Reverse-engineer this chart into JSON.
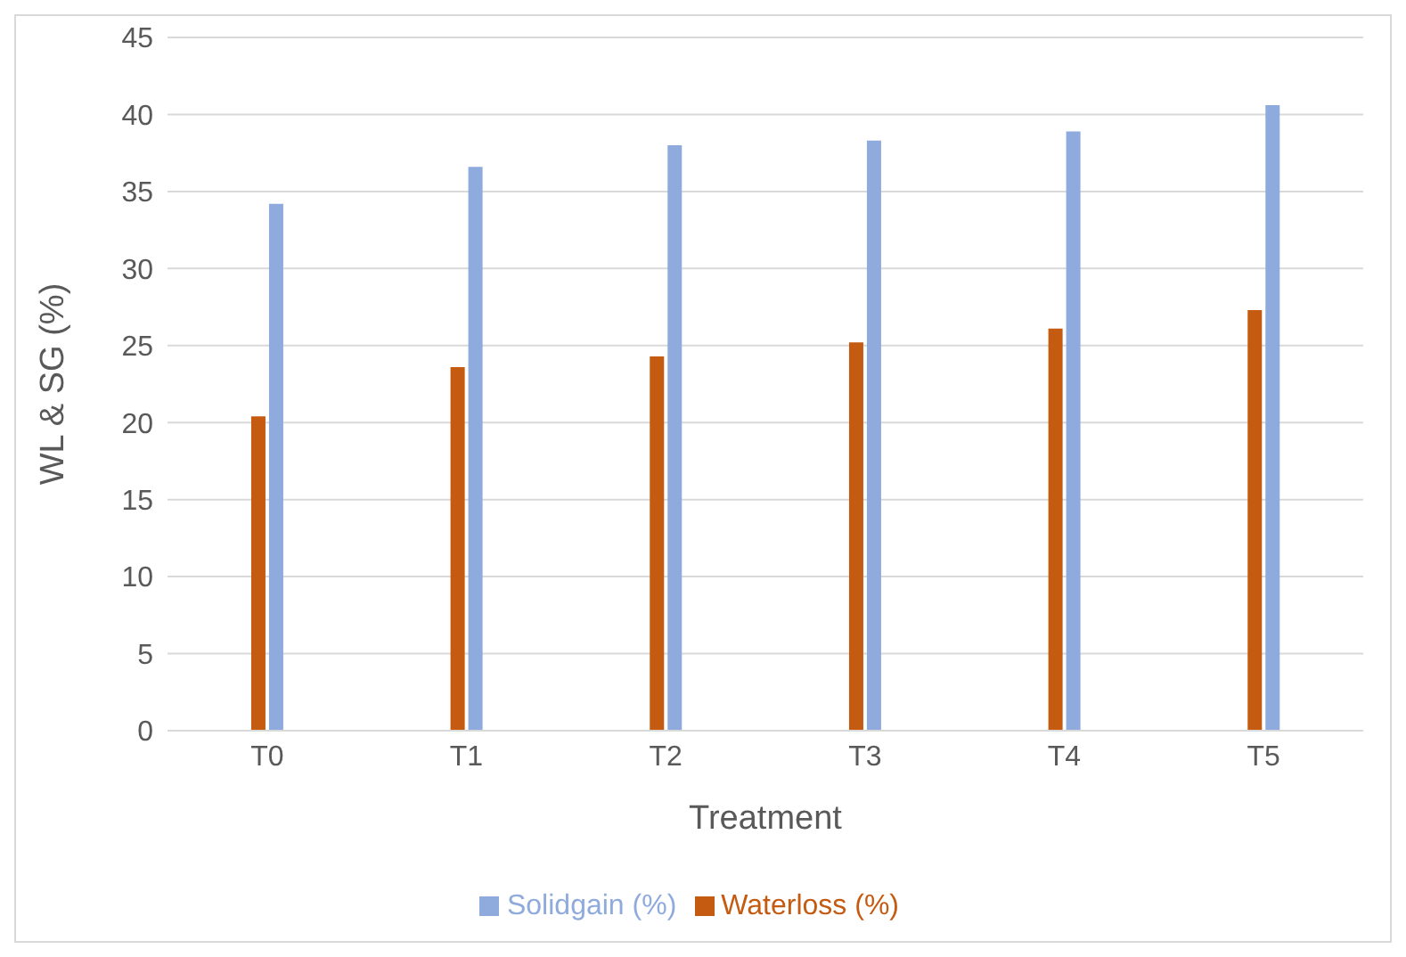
{
  "chart_data": {
    "type": "bar",
    "xlabel": "Treatment",
    "ylabel": "WL & SG (%)",
    "categories": [
      "T0",
      "T1",
      "T2",
      "T3",
      "T4",
      "T5"
    ],
    "series": [
      {
        "name": "Waterloss (%)",
        "color": "#c55a11",
        "values": [
          20.4,
          23.6,
          24.3,
          25.2,
          26.1,
          27.3
        ]
      },
      {
        "name": "Solidgain (%)",
        "color": "#8faadc",
        "values": [
          34.2,
          36.6,
          38.0,
          38.3,
          38.9,
          40.6
        ]
      }
    ],
    "ylim": [
      0,
      45
    ],
    "yticks": [
      0,
      5,
      10,
      15,
      20,
      25,
      30,
      35,
      40,
      45
    ],
    "grid": "y",
    "legend": "bottom"
  }
}
